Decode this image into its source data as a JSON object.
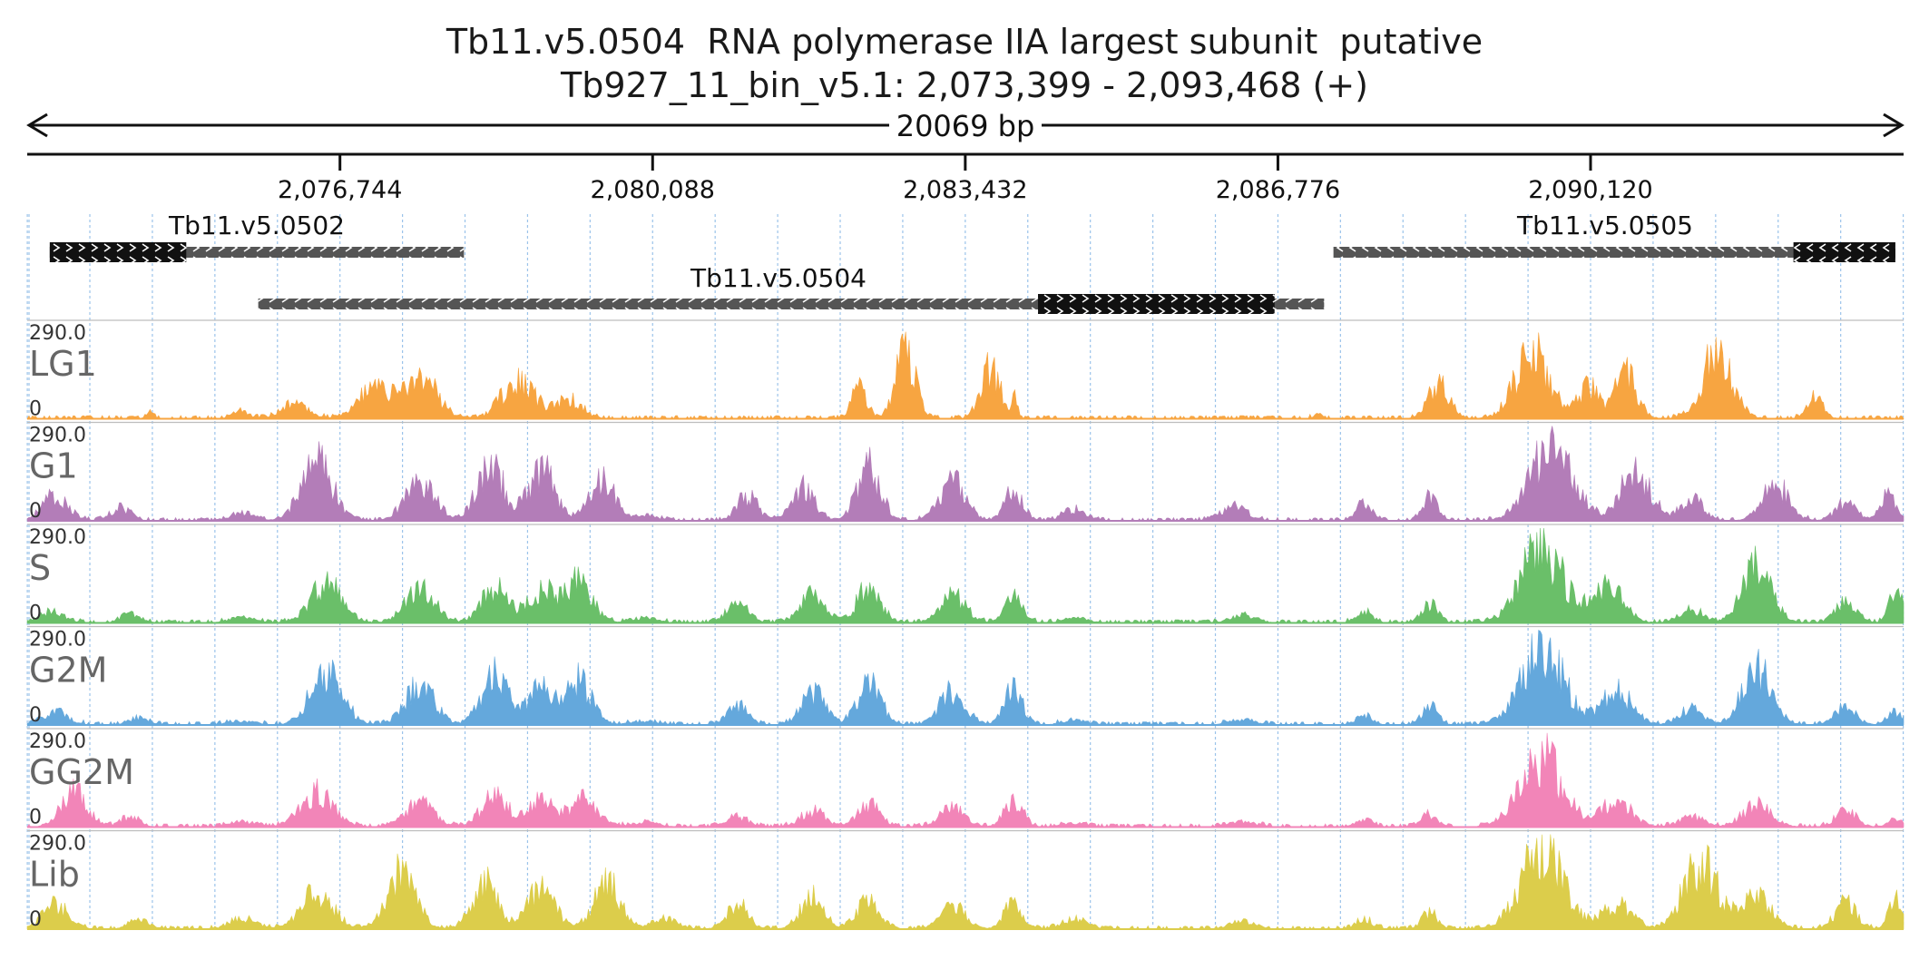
{
  "header": {
    "title": "Tb11.v5.0504  RNA polymerase IIA largest subunit  putative",
    "locus": "Tb927_11_bin_v5.1: 2,073,399 - 2,093,468 (+)"
  },
  "ruler": {
    "span_label": "20069 bp",
    "start": 2073399,
    "end": 2093468,
    "ticks": [
      {
        "pos": 2076744,
        "label": "2,076,744"
      },
      {
        "pos": 2080088,
        "label": "2,080,088"
      },
      {
        "pos": 2083432,
        "label": "2,083,432"
      },
      {
        "pos": 2086776,
        "label": "2,086,776"
      },
      {
        "pos": 2090120,
        "label": "2,090,120"
      }
    ]
  },
  "genes": [
    {
      "name": "Tb11.v5.0502",
      "strand": "+",
      "start": 2073640,
      "end": 2078070,
      "cds_start": 2073640,
      "cds_end": 2075100
    },
    {
      "name": "Tb11.v5.0504",
      "strand": "+",
      "start": 2075870,
      "end": 2087270,
      "cds_start": 2084210,
      "cds_end": 2086740
    },
    {
      "name": "Tb11.v5.0505",
      "strand": "-",
      "start": 2087370,
      "end": 2093380,
      "cds_start": 2092290,
      "cds_end": 2093380
    }
  ],
  "tracks": [
    {
      "name": "LG1",
      "color": "#f7a541",
      "max_label": "290.0",
      "min_label": "0"
    },
    {
      "name": "G1",
      "color": "#b37db8",
      "max_label": "290.0",
      "min_label": "0"
    },
    {
      "name": "S",
      "color": "#6abf69",
      "max_label": "290.0",
      "min_label": "0"
    },
    {
      "name": "G2M",
      "color": "#64a8dc",
      "max_label": "290.0",
      "min_label": "0"
    },
    {
      "name": "GG2M",
      "color": "#f285b8",
      "max_label": "290.0",
      "min_label": "0"
    },
    {
      "name": "Lib",
      "color": "#dccd4b",
      "max_label": "290.0",
      "min_label": "0"
    }
  ],
  "coverage": {
    "scale_max": 290,
    "peaks": {
      "LG1": [
        [
          2074710,
          25,
          60
        ],
        [
          2075680,
          30,
          120
        ],
        [
          2076250,
          55,
          220
        ],
        [
          2077100,
          110,
          240
        ],
        [
          2077600,
          150,
          260
        ],
        [
          2078650,
          140,
          250
        ],
        [
          2079200,
          70,
          200
        ],
        [
          2082300,
          110,
          120
        ],
        [
          2082800,
          250,
          150
        ],
        [
          2083700,
          180,
          150
        ],
        [
          2083960,
          90,
          40
        ],
        [
          2087200,
          20,
          60
        ],
        [
          2088500,
          130,
          160
        ],
        [
          2089500,
          240,
          260
        ],
        [
          2090100,
          120,
          150
        ],
        [
          2090500,
          160,
          170
        ],
        [
          2091470,
          230,
          230
        ],
        [
          2092520,
          80,
          120
        ]
      ],
      "G1": [
        [
          2073700,
          90,
          200
        ],
        [
          2074400,
          50,
          150
        ],
        [
          2075700,
          30,
          200
        ],
        [
          2076500,
          210,
          240
        ],
        [
          2077600,
          150,
          220
        ],
        [
          2078350,
          210,
          200
        ],
        [
          2078900,
          190,
          200
        ],
        [
          2079550,
          140,
          200
        ],
        [
          2080000,
          20,
          200
        ],
        [
          2081100,
          90,
          160
        ],
        [
          2081700,
          120,
          180
        ],
        [
          2082400,
          190,
          180
        ],
        [
          2083300,
          140,
          200
        ],
        [
          2083950,
          110,
          140
        ],
        [
          2084600,
          45,
          180
        ],
        [
          2086300,
          55,
          200
        ],
        [
          2087700,
          65,
          120
        ],
        [
          2088400,
          90,
          120
        ],
        [
          2089700,
          270,
          320
        ],
        [
          2090600,
          170,
          240
        ],
        [
          2091200,
          80,
          180
        ],
        [
          2092100,
          130,
          200
        ],
        [
          2092850,
          65,
          160
        ],
        [
          2093300,
          95,
          120
        ]
      ],
      "S": [
        [
          2073650,
          40,
          200
        ],
        [
          2074500,
          35,
          150
        ],
        [
          2075700,
          20,
          200
        ],
        [
          2076600,
          140,
          240
        ],
        [
          2077600,
          130,
          220
        ],
        [
          2078400,
          130,
          200
        ],
        [
          2078900,
          120,
          200
        ],
        [
          2079300,
          150,
          200
        ],
        [
          2080000,
          20,
          200
        ],
        [
          2081000,
          80,
          160
        ],
        [
          2081800,
          120,
          180
        ],
        [
          2082400,
          130,
          180
        ],
        [
          2083300,
          100,
          200
        ],
        [
          2083950,
          90,
          140
        ],
        [
          2084600,
          20,
          180
        ],
        [
          2086400,
          30,
          200
        ],
        [
          2087700,
          45,
          120
        ],
        [
          2088400,
          70,
          120
        ],
        [
          2089600,
          270,
          320
        ],
        [
          2090300,
          140,
          240
        ],
        [
          2091200,
          50,
          180
        ],
        [
          2091900,
          200,
          220
        ],
        [
          2092850,
          80,
          160
        ],
        [
          2093380,
          130,
          100
        ]
      ],
      "G2M": [
        [
          2073700,
          50,
          200
        ],
        [
          2074600,
          30,
          150
        ],
        [
          2075700,
          15,
          200
        ],
        [
          2076600,
          200,
          240
        ],
        [
          2077600,
          150,
          220
        ],
        [
          2078400,
          190,
          200
        ],
        [
          2078900,
          130,
          200
        ],
        [
          2079300,
          160,
          200
        ],
        [
          2080000,
          15,
          200
        ],
        [
          2081000,
          70,
          160
        ],
        [
          2081800,
          120,
          180
        ],
        [
          2082400,
          160,
          180
        ],
        [
          2083300,
          120,
          200
        ],
        [
          2083950,
          130,
          140
        ],
        [
          2084600,
          20,
          180
        ],
        [
          2086400,
          20,
          200
        ],
        [
          2087700,
          40,
          120
        ],
        [
          2088400,
          70,
          120
        ],
        [
          2089600,
          280,
          320
        ],
        [
          2090400,
          120,
          240
        ],
        [
          2091200,
          60,
          180
        ],
        [
          2091900,
          200,
          220
        ],
        [
          2092850,
          65,
          160
        ],
        [
          2093380,
          50,
          120
        ]
      ],
      "GG2M": [
        [
          2073900,
          130,
          200
        ],
        [
          2074500,
          40,
          150
        ],
        [
          2075700,
          20,
          200
        ],
        [
          2076500,
          130,
          240
        ],
        [
          2077600,
          90,
          220
        ],
        [
          2078400,
          120,
          200
        ],
        [
          2078900,
          100,
          200
        ],
        [
          2079350,
          110,
          200
        ],
        [
          2080000,
          20,
          200
        ],
        [
          2081000,
          40,
          160
        ],
        [
          2081800,
          60,
          180
        ],
        [
          2082400,
          80,
          180
        ],
        [
          2083300,
          70,
          200
        ],
        [
          2083950,
          100,
          140
        ],
        [
          2084600,
          15,
          180
        ],
        [
          2086400,
          20,
          200
        ],
        [
          2087700,
          30,
          120
        ],
        [
          2088400,
          50,
          120
        ],
        [
          2089600,
          250,
          320
        ],
        [
          2090400,
          90,
          240
        ],
        [
          2091200,
          40,
          180
        ],
        [
          2091900,
          80,
          220
        ],
        [
          2092850,
          60,
          160
        ],
        [
          2093380,
          30,
          120
        ]
      ],
      "Lib": [
        [
          2073700,
          90,
          200
        ],
        [
          2074600,
          40,
          150
        ],
        [
          2075700,
          40,
          200
        ],
        [
          2076500,
          140,
          240
        ],
        [
          2077400,
          200,
          220
        ],
        [
          2078300,
          170,
          200
        ],
        [
          2078900,
          150,
          200
        ],
        [
          2079600,
          170,
          200
        ],
        [
          2080200,
          40,
          200
        ],
        [
          2081000,
          90,
          160
        ],
        [
          2081800,
          120,
          180
        ],
        [
          2082400,
          110,
          180
        ],
        [
          2083300,
          80,
          200
        ],
        [
          2083950,
          100,
          140
        ],
        [
          2084600,
          40,
          180
        ],
        [
          2086400,
          30,
          200
        ],
        [
          2087700,
          40,
          120
        ],
        [
          2088400,
          60,
          120
        ],
        [
          2089600,
          285,
          320
        ],
        [
          2090400,
          90,
          240
        ],
        [
          2091300,
          240,
          260
        ],
        [
          2091900,
          120,
          220
        ],
        [
          2092850,
          100,
          160
        ],
        [
          2093380,
          110,
          100
        ]
      ]
    }
  }
}
